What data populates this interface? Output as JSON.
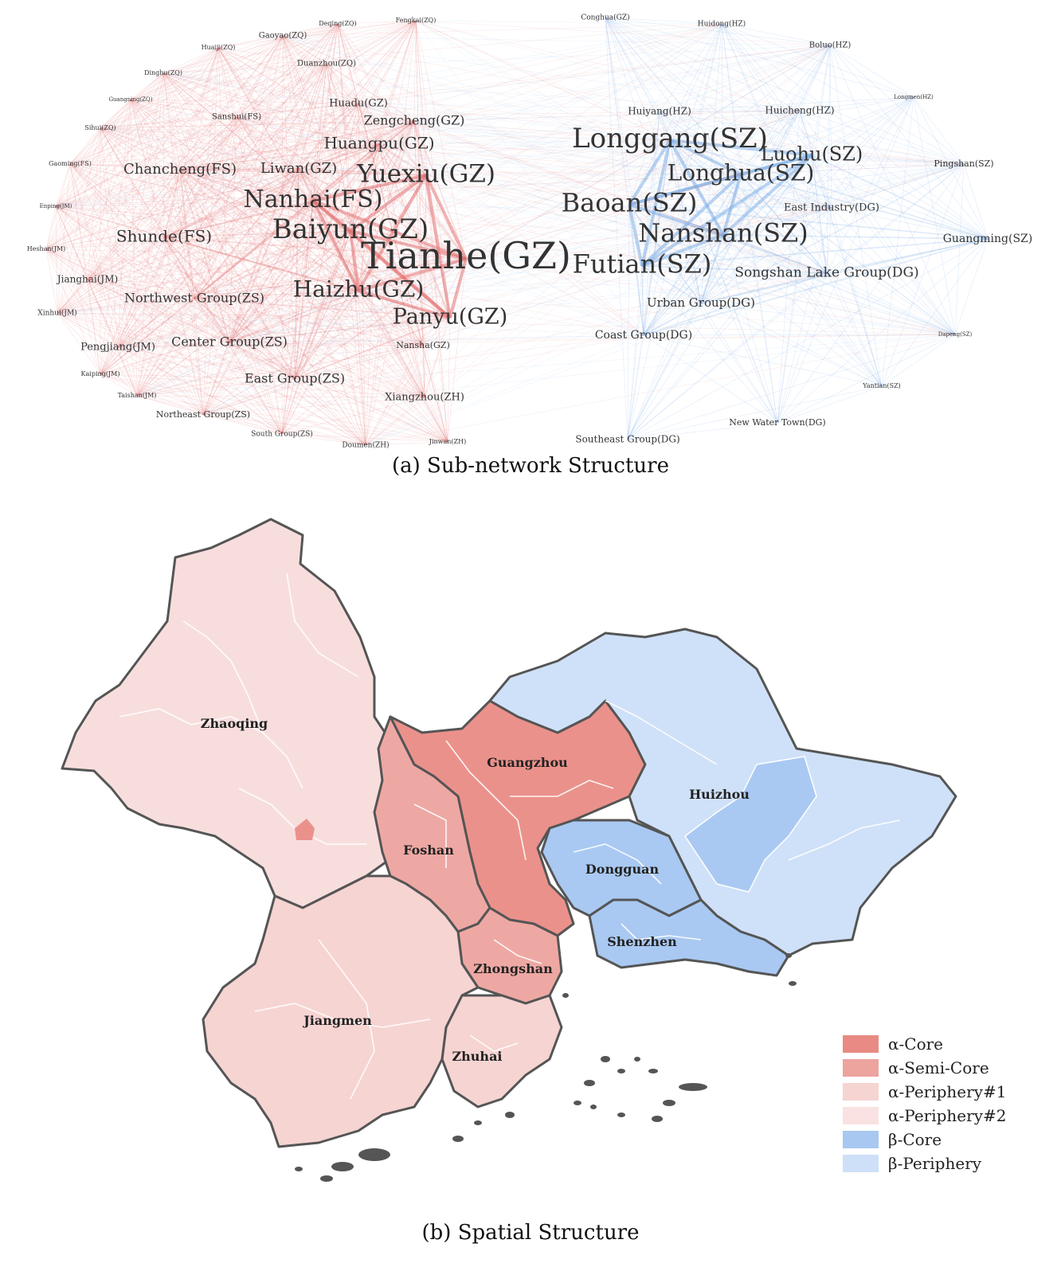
{
  "panel_a": {
    "caption": "(a) Sub-network Structure",
    "colors": {
      "alpha": "#e57373",
      "beta": "#7fb0e8"
    },
    "alpha_nodes": [
      {
        "name": "Tianhe(GZ)",
        "size": 46
      },
      {
        "name": "Baiyun(GZ)",
        "size": 34
      },
      {
        "name": "Yuexiu(GZ)",
        "size": 31
      },
      {
        "name": "Nanhai(FS)",
        "size": 30
      },
      {
        "name": "Haizhu(GZ)",
        "size": 28
      },
      {
        "name": "Panyu(GZ)",
        "size": 27
      },
      {
        "name": "Huangpu(GZ)",
        "size": 20
      },
      {
        "name": "Shunde(FS)",
        "size": 20
      },
      {
        "name": "Chancheng(FS)",
        "size": 18
      },
      {
        "name": "Liwan(GZ)",
        "size": 18
      },
      {
        "name": "Zengcheng(GZ)",
        "size": 16
      },
      {
        "name": "Northwest Group(ZS)",
        "size": 16
      },
      {
        "name": "Center Group(ZS)",
        "size": 16
      },
      {
        "name": "East Group(ZS)",
        "size": 16
      },
      {
        "name": "Huadu(GZ)",
        "size": 13
      },
      {
        "name": "Xiangzhou(ZH)",
        "size": 13
      },
      {
        "name": "Pengjiang(JM)",
        "size": 13
      },
      {
        "name": "Jianghai(JM)",
        "size": 12
      },
      {
        "name": "Northeast Group(ZS)",
        "size": 11
      },
      {
        "name": "Duanzhou(ZQ)",
        "size": 10
      },
      {
        "name": "Sanshui(FS)",
        "size": 10
      },
      {
        "name": "Nansha(GZ)",
        "size": 11
      },
      {
        "name": "Gaoyao(ZQ)",
        "size": 10
      },
      {
        "name": "Deqing(ZQ)",
        "size": 8
      },
      {
        "name": "Fengkai(ZQ)",
        "size": 8
      },
      {
        "name": "Huaiji(ZQ)",
        "size": 8
      },
      {
        "name": "Dinghu(ZQ)",
        "size": 8
      },
      {
        "name": "Guangning(ZQ)",
        "size": 7
      },
      {
        "name": "Sihui(ZQ)",
        "size": 8
      },
      {
        "name": "Gaoming(FS)",
        "size": 8
      },
      {
        "name": "Enping(JM)",
        "size": 7
      },
      {
        "name": "Heshan(JM)",
        "size": 8
      },
      {
        "name": "Xinhui(JM)",
        "size": 9
      },
      {
        "name": "Kaiping(JM)",
        "size": 8
      },
      {
        "name": "Taishan(JM)",
        "size": 8
      },
      {
        "name": "South Group(ZS)",
        "size": 9
      },
      {
        "name": "Doumen(ZH)",
        "size": 9
      },
      {
        "name": "Jinwan(ZH)",
        "size": 8
      }
    ],
    "beta_nodes": [
      {
        "name": "Longgang(SZ)",
        "size": 34
      },
      {
        "name": "Baoan(SZ)",
        "size": 32
      },
      {
        "name": "Nanshan(SZ)",
        "size": 32
      },
      {
        "name": "Futian(SZ)",
        "size": 32
      },
      {
        "name": "Longhua(SZ)",
        "size": 28
      },
      {
        "name": "Luohu(SZ)",
        "size": 24
      },
      {
        "name": "Songshan Lake Group(DG)",
        "size": 17
      },
      {
        "name": "Urban Group(DG)",
        "size": 15
      },
      {
        "name": "East Industry(DG)",
        "size": 13
      },
      {
        "name": "Guangming(SZ)",
        "size": 14
      },
      {
        "name": "Coast Group(DG)",
        "size": 14
      },
      {
        "name": "Huiyang(HZ)",
        "size": 12
      },
      {
        "name": "Huicheng(HZ)",
        "size": 12
      },
      {
        "name": "Southeast Group(DG)",
        "size": 12
      },
      {
        "name": "Pingshan(SZ)",
        "size": 11
      },
      {
        "name": "New Water Town(DG)",
        "size": 11
      },
      {
        "name": "Boluo(HZ)",
        "size": 10
      },
      {
        "name": "Conghua(GZ)",
        "size": 9
      },
      {
        "name": "Huidong(HZ)",
        "size": 9
      },
      {
        "name": "Yantian(SZ)",
        "size": 8
      },
      {
        "name": "Dapeng(SZ)",
        "size": 7
      },
      {
        "name": "Longmen(HZ)",
        "size": 7
      }
    ]
  },
  "panel_b": {
    "caption": "(b) Spatial Structure",
    "cities": [
      {
        "name": "Zhaoqing",
        "class": "alpha-periphery-1"
      },
      {
        "name": "Guangzhou",
        "class": "alpha-core"
      },
      {
        "name": "Foshan",
        "class": "alpha-semi-core"
      },
      {
        "name": "Huizhou",
        "class": "beta-periphery"
      },
      {
        "name": "Dongguan",
        "class": "beta-core"
      },
      {
        "name": "Shenzhen",
        "class": "beta-core"
      },
      {
        "name": "Zhongshan",
        "class": "alpha-semi-core"
      },
      {
        "name": "Jiangmen",
        "class": "alpha-periphery-1"
      },
      {
        "name": "Zhuhai",
        "class": "alpha-periphery-1"
      }
    ],
    "legend": [
      {
        "label": "α-Core",
        "color": "#e98a84"
      },
      {
        "label": "α-Semi-Core",
        "color": "#eda39e"
      },
      {
        "label": "α-Periphery#1",
        "color": "#f6d4d2"
      },
      {
        "label": "α-Periphery#2",
        "color": "#f9e2e1"
      },
      {
        "label": "β-Core",
        "color": "#a8c8f2"
      },
      {
        "label": "β-Periphery",
        "color": "#cde0f8"
      }
    ],
    "border_color": "#555555"
  }
}
